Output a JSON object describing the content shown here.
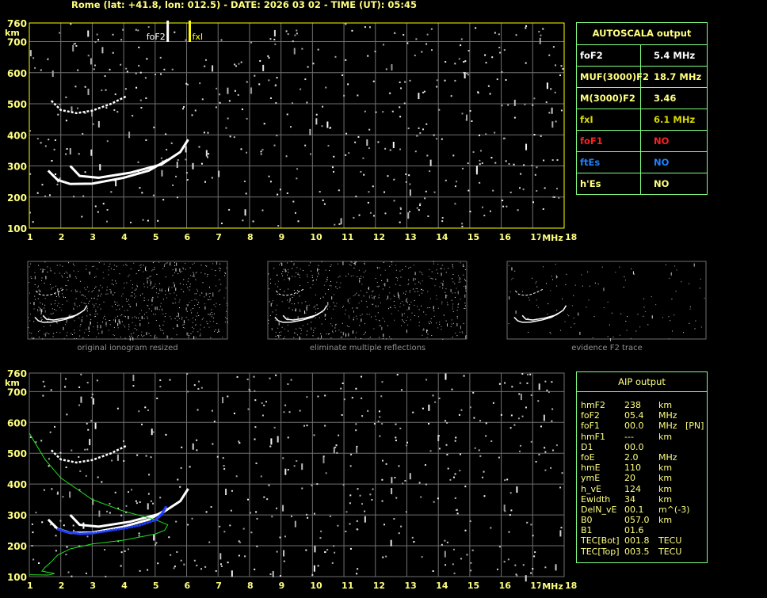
{
  "title": "Rome (lat: +41.8, lon: 012.5) - DATE: 2026 03 02 - TIME (UT): 05:45",
  "autoscala": {
    "header": "AUTOSCALA output",
    "rows": [
      {
        "k": "foF2",
        "v": "5.4 MHz",
        "color": "#ffffff"
      },
      {
        "k": "MUF(3000)F2",
        "v": "18.7 MHz",
        "color": "#ffff80"
      },
      {
        "k": "M(3000)F2",
        "v": "3.46",
        "color": "#ffff80"
      },
      {
        "k": "fxI",
        "v": "6.1 MHz",
        "color": "#d8d800"
      },
      {
        "k": "foF1",
        "v": "NO",
        "color": "#ff2020"
      },
      {
        "k": "ftEs",
        "v": "NO",
        "color": "#2080ff"
      },
      {
        "k": "h'Es",
        "v": "NO",
        "color": "#ffff80"
      }
    ]
  },
  "aip": {
    "header": "AIP output",
    "rows": [
      {
        "k": "hmF2",
        "v": "238",
        "u": "km",
        "x": ""
      },
      {
        "k": "foF2",
        "v": "05.4",
        "u": "MHz",
        "x": ""
      },
      {
        "k": "foF1",
        "v": "00.0",
        "u": "MHz",
        "x": "[PN]"
      },
      {
        "k": "hmF1",
        "v": "---",
        "u": "km",
        "x": ""
      },
      {
        "k": "D1",
        "v": "00.0",
        "u": "",
        "x": ""
      },
      {
        "k": "foE",
        "v": "2.0",
        "u": "MHz",
        "x": ""
      },
      {
        "k": "hmE",
        "v": "110",
        "u": "km",
        "x": ""
      },
      {
        "k": "ymE",
        "v": "20",
        "u": "km",
        "x": ""
      },
      {
        "k": "h_vE",
        "v": "124",
        "u": "km",
        "x": ""
      },
      {
        "k": "Ewidth",
        "v": "34",
        "u": "km",
        "x": ""
      },
      {
        "k": "DelN_vE",
        "v": "00.1",
        "u": "m^(-3)",
        "x": ""
      },
      {
        "k": "B0",
        "v": "057.0",
        "u": "km",
        "x": ""
      },
      {
        "k": "B1",
        "v": "01.6",
        "u": "",
        "x": ""
      },
      {
        "k": "TEC[Bot]",
        "v": "001.8",
        "u": "TECU",
        "x": ""
      },
      {
        "k": "TEC[Top]",
        "v": "003.5",
        "u": "TECU",
        "x": ""
      }
    ]
  },
  "captions": [
    "original ionogram resized",
    "eliminate multiple reflections",
    "evidence F2 trace"
  ],
  "chart_data": {
    "type": "scatter",
    "xlabel": "MHz",
    "ylabel": "km",
    "xlim": [
      1,
      18
    ],
    "ylim": [
      100,
      760
    ],
    "xticks": [
      1,
      2,
      3,
      4,
      5,
      6,
      7,
      8,
      9,
      10,
      11,
      12,
      13,
      14,
      15,
      16,
      17,
      18
    ],
    "yticks": [
      100,
      200,
      300,
      400,
      500,
      600,
      700,
      760
    ],
    "grid": true,
    "markers": [
      {
        "label": "foF2",
        "x": 5.4,
        "color": "#ffffff"
      },
      {
        "label": "fxI",
        "x": 6.1,
        "color": "#ffff00"
      }
    ],
    "traces": {
      "o_trace": [
        [
          1.6,
          285
        ],
        [
          1.9,
          255
        ],
        [
          2.3,
          242
        ],
        [
          3,
          243
        ],
        [
          4,
          262
        ],
        [
          4.8,
          285
        ],
        [
          5.4,
          320
        ]
      ],
      "x_trace": [
        [
          2.3,
          300
        ],
        [
          2.6,
          268
        ],
        [
          3.2,
          262
        ],
        [
          4.2,
          278
        ],
        [
          5.2,
          305
        ],
        [
          5.8,
          345
        ],
        [
          6.05,
          385
        ]
      ],
      "multiple": [
        [
          1.7,
          510
        ],
        [
          2,
          480
        ],
        [
          2.5,
          470
        ],
        [
          3,
          478
        ],
        [
          3.6,
          500
        ],
        [
          4.1,
          525
        ]
      ],
      "profile": [
        [
          1,
          565
        ],
        [
          1.5,
          480
        ],
        [
          2,
          420
        ],
        [
          3,
          350
        ],
        [
          4,
          312
        ],
        [
          5,
          285
        ],
        [
          5.4,
          268
        ],
        [
          5.3,
          250
        ],
        [
          5,
          238
        ],
        [
          4,
          218
        ],
        [
          3,
          206
        ],
        [
          2.3,
          190
        ],
        [
          1.9,
          170
        ],
        [
          1.7,
          148
        ],
        [
          1.5,
          130
        ],
        [
          1.4,
          118
        ],
        [
          1.8,
          110
        ],
        [
          1.6,
          105
        ],
        [
          1,
          106
        ]
      ],
      "fitted": [
        [
          1.9,
          255
        ],
        [
          2.2,
          245
        ],
        [
          2.6,
          240
        ],
        [
          3,
          242
        ],
        [
          3.5,
          250
        ],
        [
          4,
          258
        ],
        [
          4.5,
          268
        ],
        [
          5,
          285
        ],
        [
          5.2,
          305
        ],
        [
          5.35,
          330
        ]
      ]
    }
  }
}
